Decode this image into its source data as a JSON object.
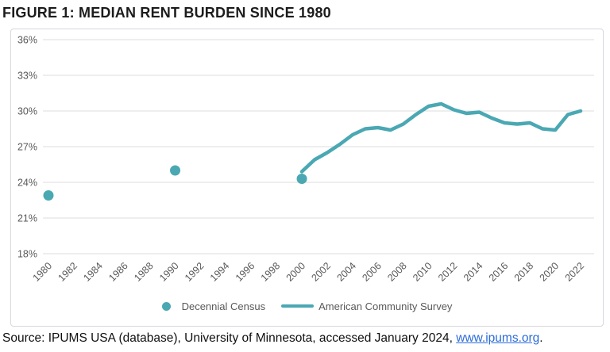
{
  "title": "FIGURE 1: MEDIAN RENT BURDEN SINCE 1980",
  "legend": [
    {
      "label": "Decennial Census",
      "marker": "dot"
    },
    {
      "label": "American Community Survey",
      "marker": "line"
    }
  ],
  "source": {
    "prefix": "Source: IPUMS USA (database), University of Minnesota, accessed January 2024, ",
    "link": "www.ipums.org",
    "suffix": "."
  },
  "colors": {
    "accent": "#4AA8B3",
    "grid": "#DCDCDC",
    "axis_text": "#595959",
    "border": "#D7D7DE",
    "link": "#2B6CD9",
    "title_text": "#1C1C1C",
    "source_text": "#101010"
  },
  "chart_data": {
    "type": "line",
    "title": "FIGURE 1: MEDIAN RENT BURDEN SINCE 1980",
    "xlabel": "",
    "ylabel": "",
    "ylim": [
      18,
      36
    ],
    "ytick_step": 3,
    "ytick_suffix": "%",
    "grid": "horizontal",
    "legend_position": "bottom",
    "xticks": [
      1980,
      1982,
      1984,
      1986,
      1988,
      1990,
      1992,
      1994,
      1996,
      1998,
      2000,
      2002,
      2004,
      2006,
      2008,
      2010,
      2012,
      2014,
      2016,
      2018,
      2020,
      2022
    ],
    "series": [
      {
        "name": "Decennial Census",
        "type": "scatter",
        "points": [
          [
            1980,
            22.9
          ],
          [
            1990,
            25.0
          ],
          [
            2000,
            24.3
          ]
        ]
      },
      {
        "name": "American Community Survey",
        "type": "line",
        "points": [
          [
            2000,
            24.9
          ],
          [
            2001,
            25.9
          ],
          [
            2002,
            26.5
          ],
          [
            2003,
            27.2
          ],
          [
            2004,
            28.0
          ],
          [
            2005,
            28.5
          ],
          [
            2006,
            28.6
          ],
          [
            2007,
            28.4
          ],
          [
            2008,
            28.9
          ],
          [
            2009,
            29.7
          ],
          [
            2010,
            30.4
          ],
          [
            2011,
            30.6
          ],
          [
            2012,
            30.1
          ],
          [
            2013,
            29.8
          ],
          [
            2014,
            29.9
          ],
          [
            2015,
            29.4
          ],
          [
            2016,
            29.0
          ],
          [
            2017,
            28.9
          ],
          [
            2018,
            29.0
          ],
          [
            2019,
            28.5
          ],
          [
            2020,
            28.4
          ],
          [
            2021,
            29.7
          ],
          [
            2022,
            30.0
          ]
        ]
      }
    ]
  }
}
